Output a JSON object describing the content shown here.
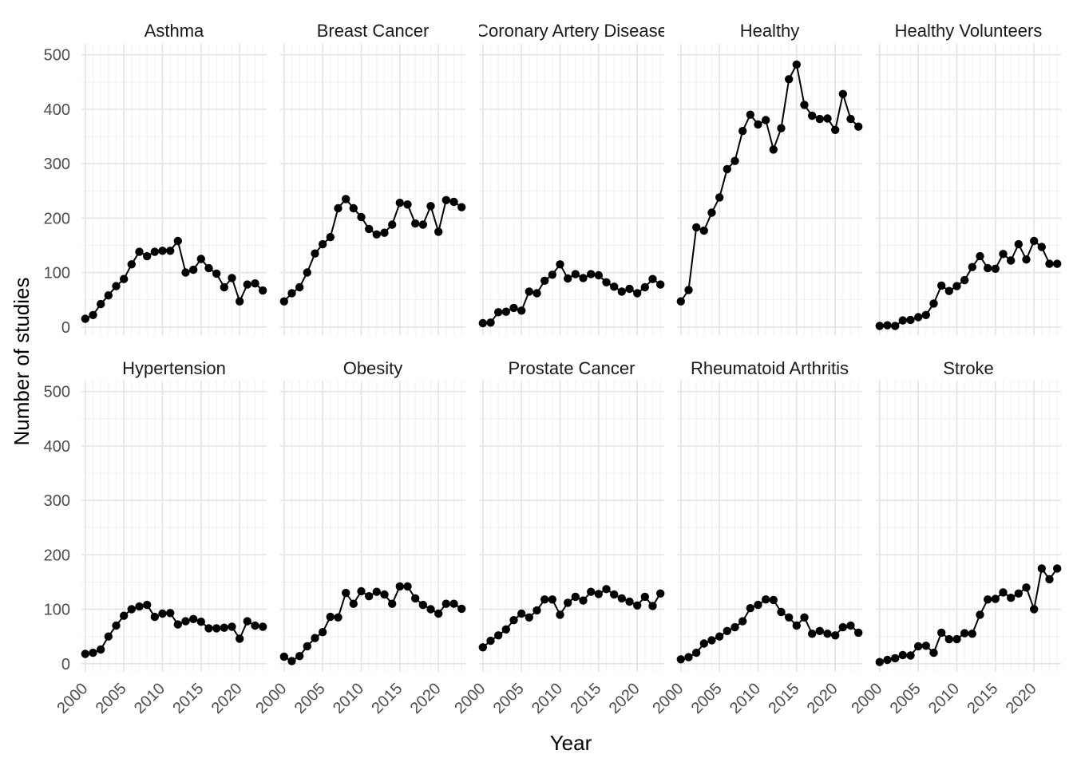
{
  "chart_data": {
    "type": "line",
    "facet_layout": "2 rows x 5 columns, shared axes",
    "xlabel": "Year",
    "ylabel": "Number of studies",
    "xlim": [
      1999.5,
      2023.5
    ],
    "ylim": [
      -15,
      520
    ],
    "x_ticks": [
      "2000",
      "2005",
      "2010",
      "2015",
      "2020"
    ],
    "y_ticks": [
      "0",
      "100",
      "200",
      "300",
      "400",
      "500"
    ],
    "grid": true,
    "markers": "points",
    "line_color": "#000000",
    "x": [
      2000,
      2001,
      2002,
      2003,
      2004,
      2005,
      2006,
      2007,
      2008,
      2009,
      2010,
      2011,
      2012,
      2013,
      2014,
      2015,
      2016,
      2017,
      2018,
      2019,
      2020,
      2021,
      2022,
      2023
    ],
    "series": [
      {
        "name": "Asthma",
        "label": "Asthma",
        "values": [
          15,
          22,
          42,
          58,
          75,
          88,
          115,
          138,
          130,
          138,
          140,
          140,
          158,
          100,
          105,
          125,
          108,
          98,
          73,
          90,
          47,
          78,
          80,
          67
        ]
      },
      {
        "name": "Breast Cancer",
        "label": "Breast Cancer",
        "values": [
          47,
          62,
          73,
          100,
          135,
          152,
          165,
          218,
          235,
          218,
          202,
          180,
          170,
          173,
          188,
          228,
          225,
          190,
          188,
          222,
          175,
          233,
          230,
          220
        ]
      },
      {
        "name": "Coronary Artery Disease",
        "label": "Coronary Artery Disease",
        "values": [
          7,
          8,
          27,
          28,
          35,
          30,
          65,
          62,
          85,
          96,
          115,
          89,
          97,
          90,
          97,
          95,
          82,
          74,
          65,
          70,
          62,
          73,
          88,
          78
        ]
      },
      {
        "name": "Healthy",
        "label": "Healthy",
        "values": [
          47,
          68,
          183,
          177,
          210,
          238,
          290,
          305,
          360,
          390,
          372,
          380,
          326,
          365,
          455,
          482,
          408,
          388,
          382,
          383,
          362,
          428,
          382,
          368
        ]
      },
      {
        "name": "Healthy Volunteers",
        "label": "Healthy Volunteers",
        "values": [
          2,
          3,
          2,
          12,
          13,
          18,
          22,
          43,
          76,
          66,
          75,
          86,
          110,
          130,
          108,
          107,
          134,
          122,
          152,
          124,
          158,
          147,
          116,
          116
        ]
      },
      {
        "name": "Hypertension",
        "label": "Hypertension",
        "values": [
          18,
          20,
          26,
          50,
          70,
          88,
          100,
          105,
          108,
          86,
          92,
          93,
          72,
          78,
          82,
          77,
          65,
          65,
          66,
          68,
          46,
          78,
          70,
          68
        ]
      },
      {
        "name": "Obesity",
        "label": "Obesity",
        "values": [
          13,
          5,
          14,
          32,
          47,
          58,
          86,
          85,
          130,
          110,
          133,
          124,
          132,
          127,
          110,
          142,
          142,
          120,
          108,
          100,
          92,
          110,
          110,
          101
        ]
      },
      {
        "name": "Prostate Cancer",
        "label": "Prostate Cancer",
        "values": [
          30,
          42,
          52,
          63,
          80,
          92,
          85,
          98,
          118,
          118,
          90,
          112,
          123,
          116,
          132,
          128,
          137,
          127,
          120,
          114,
          107,
          123,
          106,
          129
        ]
      },
      {
        "name": "Rheumatoid Arthritis",
        "label": "Rheumatoid Arthritis",
        "values": [
          8,
          12,
          20,
          37,
          43,
          50,
          60,
          67,
          78,
          102,
          108,
          118,
          117,
          95,
          85,
          70,
          85,
          55,
          60,
          55,
          52,
          67,
          70,
          57
        ]
      },
      {
        "name": "Stroke",
        "label": "Stroke",
        "values": [
          3,
          7,
          10,
          16,
          15,
          32,
          33,
          20,
          57,
          45,
          45,
          56,
          55,
          90,
          118,
          119,
          131,
          121,
          129,
          140,
          100,
          175,
          155,
          175
        ]
      }
    ]
  }
}
